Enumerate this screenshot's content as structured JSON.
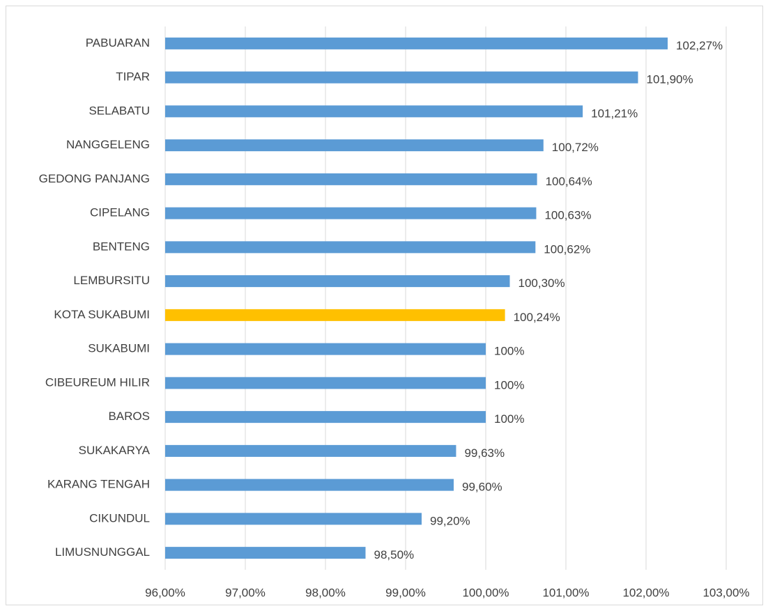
{
  "chart_data": {
    "type": "bar",
    "orientation": "horizontal",
    "categories": [
      "PABUARAN",
      "TIPAR",
      "SELABATU",
      "NANGGELENG",
      "GEDONG PANJANG",
      "CIPELANG",
      "BENTENG",
      "LEMBURSITU",
      "KOTA SUKABUMI",
      "SUKABUMI",
      "CIBEUREUM HILIR",
      "BAROS",
      "SUKAKARYA",
      "KARANG TENGAH",
      "CIKUNDUL",
      "LIMUSNUNGGAL"
    ],
    "values": [
      102.27,
      101.9,
      101.21,
      100.72,
      100.64,
      100.63,
      100.62,
      100.3,
      100.24,
      100,
      100,
      100,
      99.63,
      99.6,
      99.2,
      98.5
    ],
    "value_labels": [
      "102,27%",
      "101,90%",
      "101,21%",
      "100,72%",
      "100,64%",
      "100,63%",
      "100,62%",
      "100,30%",
      "100,24%",
      "100%",
      "100%",
      "100%",
      "99,63%",
      "99,60%",
      "99,20%",
      "98,50%"
    ],
    "colors": [
      "#5b9bd5",
      "#5b9bd5",
      "#5b9bd5",
      "#5b9bd5",
      "#5b9bd5",
      "#5b9bd5",
      "#5b9bd5",
      "#5b9bd5",
      "#ffc000",
      "#5b9bd5",
      "#5b9bd5",
      "#5b9bd5",
      "#5b9bd5",
      "#5b9bd5",
      "#5b9bd5",
      "#5b9bd5"
    ],
    "xlim": [
      96,
      103
    ],
    "xticks": [
      {
        "value": 96,
        "label": "96,00%"
      },
      {
        "value": 97,
        "label": "97,00%"
      },
      {
        "value": 98,
        "label": "98,00%"
      },
      {
        "value": 99,
        "label": "99,00%"
      },
      {
        "value": 100,
        "label": "100,00%"
      },
      {
        "value": 101,
        "label": "101,00%"
      },
      {
        "value": 102,
        "label": "102,00%"
      },
      {
        "value": 103,
        "label": "103,00%"
      }
    ],
    "grid": true
  }
}
